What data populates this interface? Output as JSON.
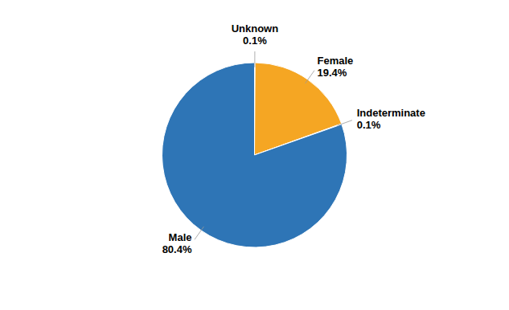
{
  "chart_data": {
    "type": "pie",
    "categories": [
      "Unknown",
      "Female",
      "Indeterminate",
      "Male"
    ],
    "values": [
      0.1,
      19.4,
      0.1,
      80.4
    ],
    "value_labels": [
      "0.1%",
      "19.4%",
      "0.1%",
      "80.4%"
    ],
    "colors": [
      "#2e75b6",
      "#f5a623",
      "#2e75b6",
      "#2e75b6"
    ],
    "data_labels": true
  }
}
